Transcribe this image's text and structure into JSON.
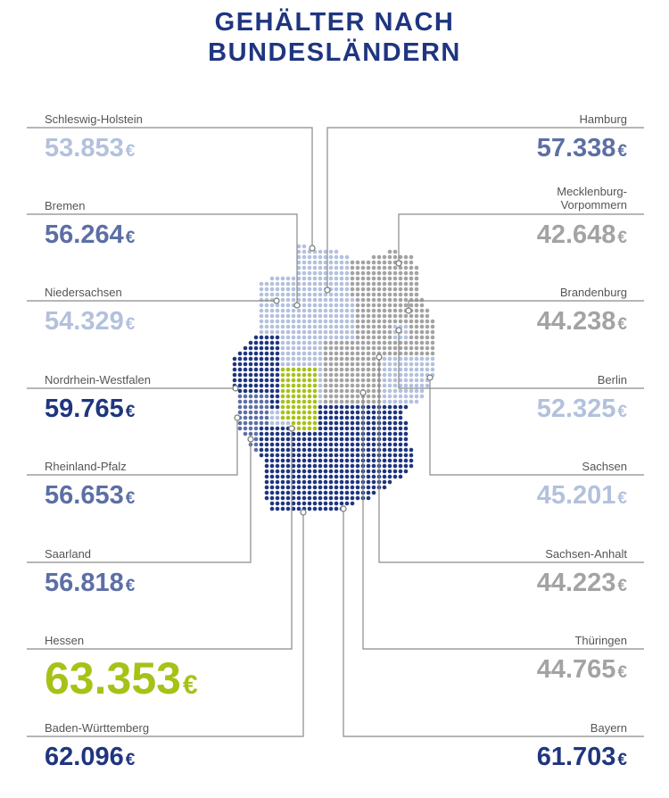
{
  "title_line1": "GEHÄLTER NACH",
  "title_line2": "BUNDESLÄNDERN",
  "currency": "€",
  "colors": {
    "dark": "#1f3580",
    "mid": "#5c6fa5",
    "light": "#b3c1dd",
    "grey": "#a3a3a3",
    "green": "#a7c117"
  },
  "left": [
    {
      "name": "Schleswig-Holstein",
      "value": "53.853",
      "tier": "light"
    },
    {
      "name": "Bremen",
      "value": "56.264",
      "tier": "mid"
    },
    {
      "name": "Niedersachsen",
      "value": "54.329",
      "tier": "light"
    },
    {
      "name": "Nordrhein-Westfalen",
      "value": "59.765",
      "tier": "dark"
    },
    {
      "name": "Rheinland-Pfalz",
      "value": "56.653",
      "tier": "mid"
    },
    {
      "name": "Saarland",
      "value": "56.818",
      "tier": "mid"
    },
    {
      "name": "Hessen",
      "value": "63.353",
      "tier": "green"
    },
    {
      "name": "Baden-Württemberg",
      "value": "62.096",
      "tier": "dark"
    }
  ],
  "right": [
    {
      "name": "Hamburg",
      "value": "57.338",
      "tier": "mid"
    },
    {
      "name": "Mecklenburg-Vorpommern",
      "value": "42.648",
      "tier": "grey"
    },
    {
      "name": "Brandenburg",
      "value": "44.238",
      "tier": "grey"
    },
    {
      "name": "Berlin",
      "value": "52.325",
      "tier": "light"
    },
    {
      "name": "Sachsen",
      "value": "45.201",
      "tier": "light"
    },
    {
      "name": "Sachsen-Anhalt",
      "value": "44.223",
      "tier": "grey"
    },
    {
      "name": "Thüringen",
      "value": "44.765",
      "tier": "grey"
    },
    {
      "name": "Bayern",
      "value": "61.703",
      "tier": "dark"
    }
  ]
}
